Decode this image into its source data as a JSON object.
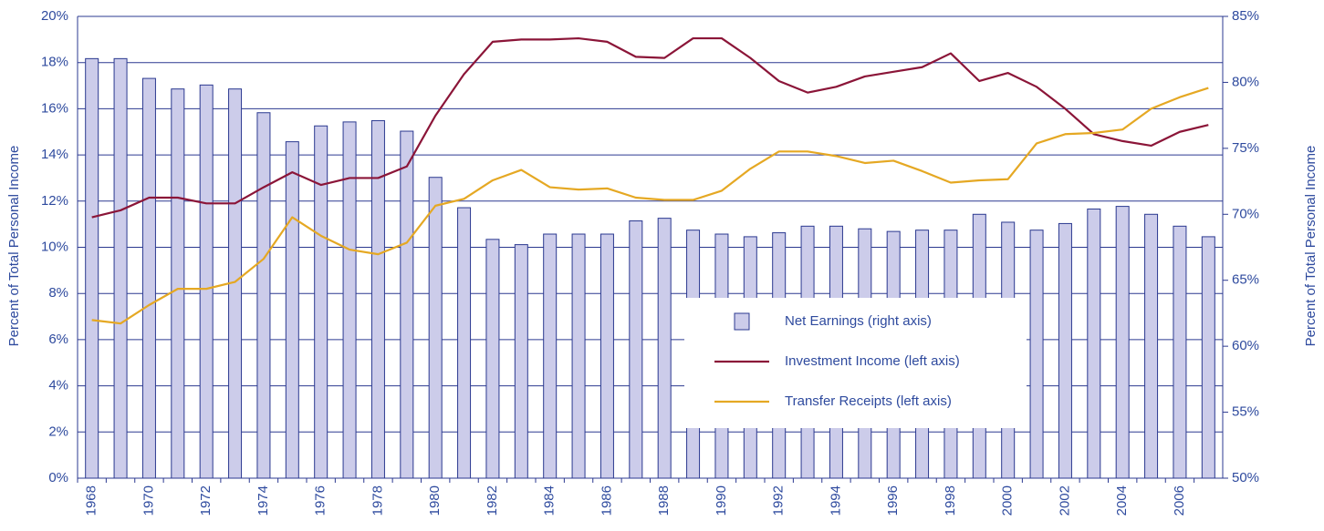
{
  "chart_data": {
    "type": "bar",
    "categories": [
      "1968",
      null,
      "1970",
      null,
      "1972",
      null,
      "1974",
      null,
      "1976",
      null,
      "1978",
      null,
      "1980",
      null,
      "1982",
      null,
      "1984",
      null,
      "1986",
      null,
      "1988",
      null,
      "1990",
      null,
      "1992",
      null,
      "1994",
      null,
      "1996",
      null,
      "1998",
      null,
      "2000",
      null,
      "2002",
      null,
      "2004",
      null,
      "2006",
      null
    ],
    "series": [
      {
        "name": "Net Earnings (right axis)",
        "type": "bar",
        "axis": "y2",
        "color": "#ccccea",
        "values": [
          81.8,
          81.8,
          80.3,
          79.5,
          79.8,
          79.5,
          77.7,
          75.5,
          76.7,
          77.0,
          77.1,
          76.3,
          72.8,
          70.5,
          68.1,
          67.7,
          68.5,
          68.5,
          68.5,
          69.5,
          69.7,
          68.8,
          68.5,
          68.3,
          68.6,
          69.1,
          69.1,
          68.9,
          68.7,
          68.8,
          68.8,
          70.0,
          69.4,
          68.8,
          69.3,
          70.4,
          70.6,
          70.0,
          69.1,
          68.3
        ]
      },
      {
        "name": "Investment Income (left axis)",
        "type": "line",
        "color": "#8b1538",
        "values": [
          11.3,
          11.6,
          12.15,
          12.15,
          11.9,
          11.9,
          12.6,
          13.25,
          12.7,
          13.0,
          13.0,
          13.5,
          15.7,
          17.5,
          18.9,
          19.0,
          19.0,
          19.05,
          18.9,
          18.25,
          18.2,
          19.05,
          19.05,
          18.2,
          17.2,
          16.7,
          16.95,
          17.4,
          17.6,
          17.8,
          18.4,
          17.2,
          17.55,
          16.95,
          16.0,
          14.9,
          14.6,
          14.4,
          15.0,
          15.3
        ]
      },
      {
        "name": "Transfer Receipts (left axis)",
        "type": "line",
        "color": "#e5a823",
        "values": [
          6.85,
          6.7,
          7.5,
          8.2,
          8.2,
          8.5,
          9.5,
          11.3,
          10.5,
          9.9,
          9.7,
          10.2,
          11.8,
          12.1,
          12.9,
          13.35,
          12.6,
          12.5,
          12.55,
          12.15,
          12.05,
          12.05,
          12.45,
          13.4,
          14.15,
          14.15,
          13.95,
          13.65,
          13.75,
          13.3,
          12.8,
          12.9,
          12.95,
          14.5,
          14.9,
          14.95,
          15.1,
          16.0,
          16.5,
          16.9
        ]
      }
    ],
    "y_label": "Percent of Total Personal Income",
    "y2_label": "Percent of Total Personal Income",
    "ylim": [
      0,
      20
    ],
    "yticks": [
      {
        "value": 0,
        "label": "0%"
      },
      {
        "value": 2,
        "label": "2%"
      },
      {
        "value": 4,
        "label": "4%"
      },
      {
        "value": 6,
        "label": "6%"
      },
      {
        "value": 8,
        "label": "8%"
      },
      {
        "value": 10,
        "label": "10%"
      },
      {
        "value": 12,
        "label": "12%"
      },
      {
        "value": 14,
        "label": "14%"
      },
      {
        "value": 16,
        "label": "16%"
      },
      {
        "value": 18,
        "label": "18%"
      },
      {
        "value": 20,
        "label": "20%"
      }
    ],
    "y2lim": [
      50,
      85
    ],
    "y2ticks": [
      {
        "value": 50,
        "label": "50%"
      },
      {
        "value": 55,
        "label": "55%"
      },
      {
        "value": 60,
        "label": "60%"
      },
      {
        "value": 65,
        "label": "65%"
      },
      {
        "value": 70,
        "label": "70%"
      },
      {
        "value": 75,
        "label": "75%"
      },
      {
        "value": 80,
        "label": "80%"
      },
      {
        "value": 85,
        "label": "85%"
      }
    ],
    "grid": true
  }
}
